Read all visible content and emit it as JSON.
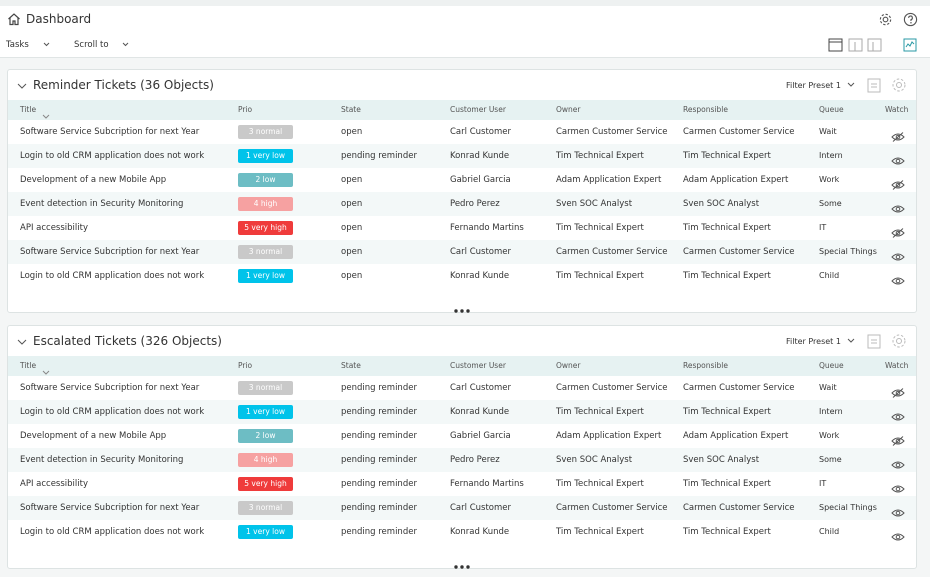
{
  "header": {
    "title": "Dashboard"
  },
  "toolbar": {
    "tasks": "Tasks",
    "scroll_to": "Scroll to"
  },
  "widgets": [
    {
      "title": "Reminder Tickets (36 Objects)",
      "filter": "Filter Preset 1",
      "columns": [
        "Title",
        "Prio",
        "State",
        "Customer User",
        "Owner",
        "Responsible",
        "Queue",
        "Watch"
      ],
      "rows": [
        {
          "title": "Software Service Subcription for next Year",
          "prio": "3 normal",
          "prio_color": "#c9c9c9",
          "state": "open",
          "customer_user": "Carl Customer",
          "owner": "Carmen Customer Service",
          "responsible": "Carmen Customer Service",
          "queue": "Wait",
          "watched": false
        },
        {
          "title": "Login to old CRM application does not work",
          "prio": "1 very low",
          "prio_color": "#00c3ea",
          "state": "pending reminder",
          "customer_user": "Konrad Kunde",
          "owner": "Tim Technical Expert",
          "responsible": "Tim Technical Expert",
          "queue": "Intern",
          "watched": true
        },
        {
          "title": "Development of a new Mobile App",
          "prio": "2 low",
          "prio_color": "#6dbdc4",
          "state": "open",
          "customer_user": "Gabriel Garcia",
          "owner": "Adam Application Expert",
          "responsible": "Adam Application Expert",
          "queue": "Work",
          "watched": false
        },
        {
          "title": "Event detection in Security Monitoring",
          "prio": "4 high",
          "prio_color": "#f6a1a1",
          "state": "open",
          "customer_user": "Pedro Perez",
          "owner": "Sven SOC Analyst",
          "responsible": "Sven SOC Analyst",
          "queue": "Some",
          "watched": true
        },
        {
          "title": "API accessibility",
          "prio": "5 very high",
          "prio_color": "#ef3b3b",
          "state": "open",
          "customer_user": "Fernando Martins",
          "owner": "Tim Technical Expert",
          "responsible": "Tim Technical Expert",
          "queue": "IT",
          "watched": false
        },
        {
          "title": "Software Service Subcription for next Year",
          "prio": "3 normal",
          "prio_color": "#c9c9c9",
          "state": "open",
          "customer_user": "Carl Customer",
          "owner": "Carmen Customer Service",
          "responsible": "Carmen Customer Service",
          "queue": "Special Things",
          "watched": true
        },
        {
          "title": "Login to old CRM application does not work",
          "prio": "1 very low",
          "prio_color": "#00c3ea",
          "state": "open",
          "customer_user": "Konrad Kunde",
          "owner": "Tim Technical Expert",
          "responsible": "Tim Technical Expert",
          "queue": "Child",
          "watched": true
        }
      ]
    },
    {
      "title": "Escalated Tickets (326 Objects)",
      "filter": "Filter Preset 1",
      "columns": [
        "Title",
        "Prio",
        "State",
        "Customer User",
        "Owner",
        "Responsible",
        "Queue",
        "Watch"
      ],
      "rows": [
        {
          "title": "Software Service Subcription for next Year",
          "prio": "3 normal",
          "prio_color": "#c9c9c9",
          "state": "pending reminder",
          "customer_user": "Carl Customer",
          "owner": "Carmen Customer Service",
          "responsible": "Carmen Customer Service",
          "queue": "Wait",
          "watched": false
        },
        {
          "title": "Login to old CRM application does not work",
          "prio": "1 very low",
          "prio_color": "#00c3ea",
          "state": "pending reminder",
          "customer_user": "Konrad Kunde",
          "owner": "Tim Technical Expert",
          "responsible": "Tim Technical Expert",
          "queue": "Intern",
          "watched": true
        },
        {
          "title": "Development of a new Mobile App",
          "prio": "2 low",
          "prio_color": "#6dbdc4",
          "state": "pending reminder",
          "customer_user": "Gabriel Garcia",
          "owner": "Adam Application Expert",
          "responsible": "Adam Application Expert",
          "queue": "Work",
          "watched": false
        },
        {
          "title": "Event detection in Security Monitoring",
          "prio": "4 high",
          "prio_color": "#f6a1a1",
          "state": "pending reminder",
          "customer_user": "Pedro Perez",
          "owner": "Sven SOC Analyst",
          "responsible": "Sven SOC Analyst",
          "queue": "Some",
          "watched": true
        },
        {
          "title": "API accessibility",
          "prio": "5 very high",
          "prio_color": "#ef3b3b",
          "state": "pending reminder",
          "customer_user": "Fernando Martins",
          "owner": "Tim Technical Expert",
          "responsible": "Tim Technical Expert",
          "queue": "IT",
          "watched": true
        },
        {
          "title": "Software Service Subcription for next Year",
          "prio": "3 normal",
          "prio_color": "#c9c9c9",
          "state": "pending reminder",
          "customer_user": "Carl Customer",
          "owner": "Carmen Customer Service",
          "responsible": "Carmen Customer Service",
          "queue": "Special Things",
          "watched": true
        },
        {
          "title": "Login to old CRM application does not work",
          "prio": "1 very low",
          "prio_color": "#00c3ea",
          "state": "pending reminder",
          "customer_user": "Konrad Kunde",
          "owner": "Tim Technical Expert",
          "responsible": "Tim Technical Expert",
          "queue": "Child",
          "watched": true
        }
      ]
    }
  ]
}
